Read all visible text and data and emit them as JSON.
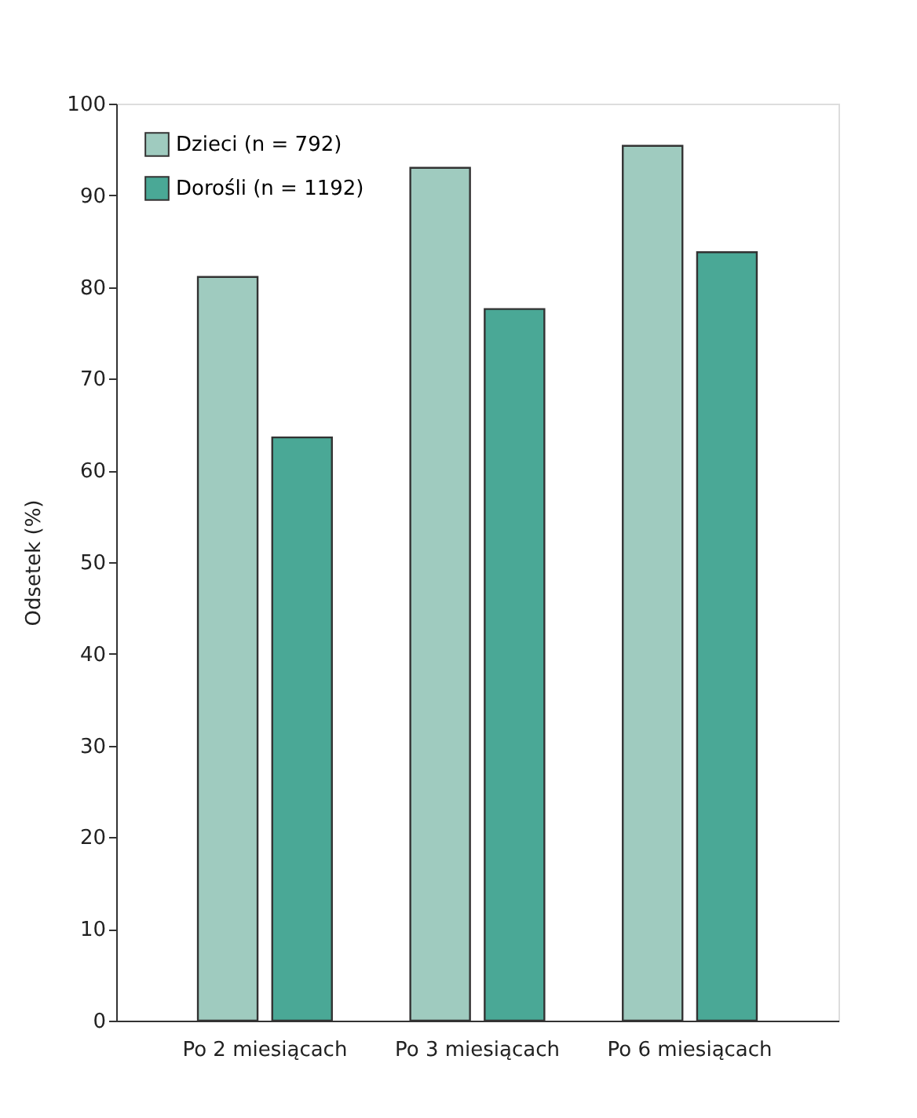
{
  "chart_data": {
    "type": "bar",
    "ylabel": "Odsetek (%)",
    "categories": [
      "Po 2 miesiącach",
      "Po 3 miesiącach",
      "Po 6 miesiącach"
    ],
    "series": [
      {
        "name": "Dzieci (n = 792)",
        "color": "#9fcbbf",
        "values": [
          81.1,
          93.0,
          95.4
        ]
      },
      {
        "name": "Dorośli (n = 1192)",
        "color": "#4aa896",
        "values": [
          63.6,
          77.6,
          83.8
        ]
      }
    ],
    "ylim": [
      0,
      100
    ],
    "yticks": [
      0,
      10,
      20,
      30,
      40,
      50,
      60,
      70,
      80,
      90,
      100
    ],
    "grid": false,
    "legend": "top left"
  }
}
